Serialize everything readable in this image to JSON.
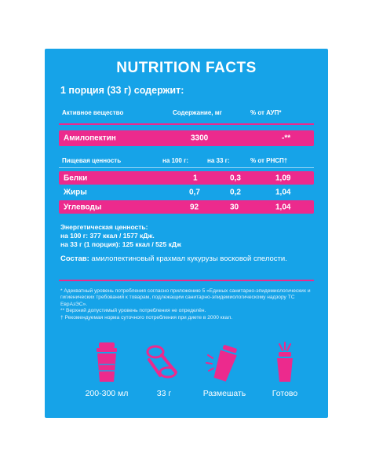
{
  "title": "NUTRITION FACTS",
  "portion": "1 порция (33 г) содержит:",
  "active_table": {
    "headers": [
      "Активное вещество",
      "Содержание, мг",
      "% от АУП*"
    ],
    "row": [
      "Амилопектин",
      "3300",
      "-**"
    ]
  },
  "nutrition_table": {
    "headers": [
      "Пищевая ценность",
      "на 100 г:",
      "на 33 г:",
      "% от РНСП†"
    ],
    "rows": [
      [
        "Белки",
        "1",
        "0,3",
        "1,09"
      ],
      [
        "Жиры",
        "0,7",
        "0,2",
        "1,04"
      ],
      [
        "Углеводы",
        "92",
        "30",
        "1,04"
      ]
    ]
  },
  "energy": {
    "heading": "Энергетическая ценность:",
    "per100": "на 100 г: 377 ккал / 1577 кДж.",
    "per33": "на 33 г (1 порция): 125 ккал / 525 кДж"
  },
  "composition": {
    "label": "Состав:",
    "text": "амилопектиновый крахмал кукурузы восковой спелости."
  },
  "notes": [
    "* Адекватный уровень потребления согласно приложению 5 «Единых санитарно-эпидемиологических и гигиенических требований к товарам, подлежащим санитарно-эпидемиологическому надзору ТС ЕврАзЭС».",
    "** Верхний допустимый уровень потребления не определён.",
    "† Рекомендуемая норма суточного потребления при диете в 2000 ккал."
  ],
  "steps": [
    {
      "icon": "shaker-icon",
      "label": "200-300 мл"
    },
    {
      "icon": "scoop-icon",
      "label": "33 г"
    },
    {
      "icon": "shake-icon",
      "label": "Размешать"
    },
    {
      "icon": "drink-ready-icon",
      "label": "Готово"
    }
  ],
  "colors": {
    "background": "#16a3e8",
    "accent": "#ec2a8d",
    "text": "#ffffff"
  }
}
